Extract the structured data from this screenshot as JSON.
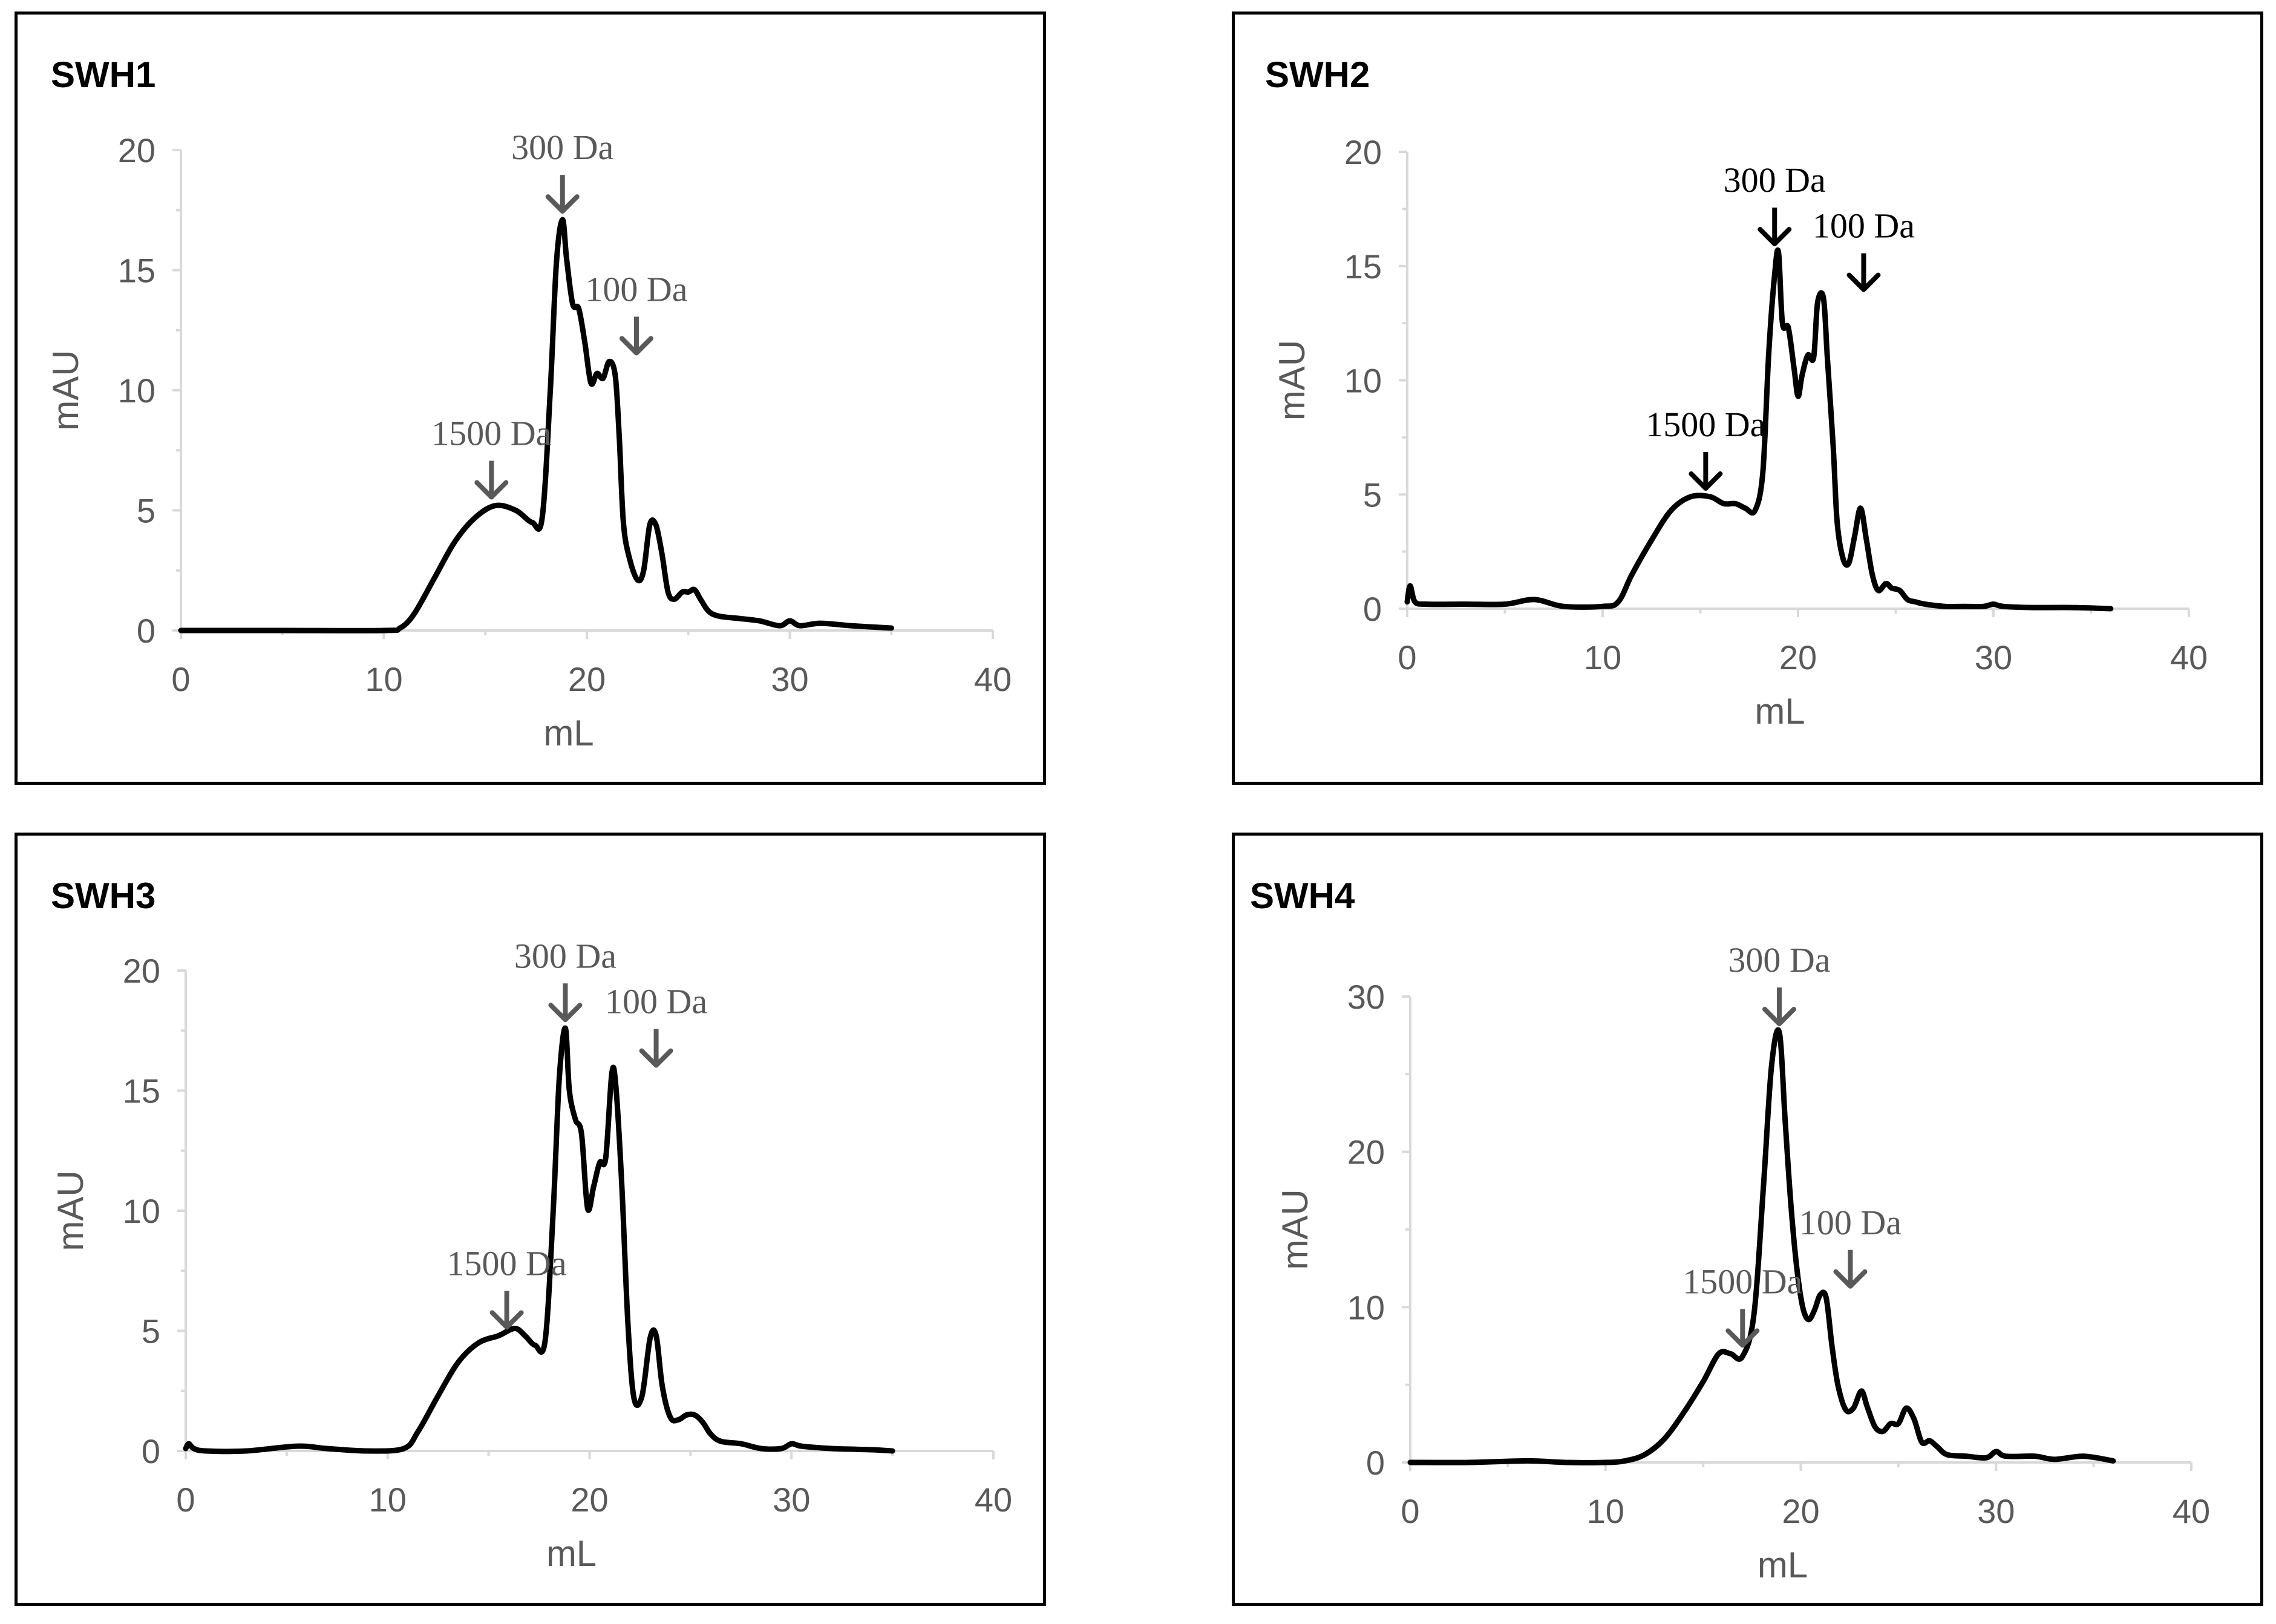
{
  "chart_data": [
    {
      "type": "line",
      "title": "SWH1",
      "xlabel": "mL",
      "ylabel": "mAU",
      "xlim": [
        0,
        40
      ],
      "ylim": [
        0,
        20
      ],
      "xticks": [
        0,
        10,
        20,
        30,
        40
      ],
      "yticks": [
        0,
        5,
        10,
        15,
        20
      ],
      "color": "#000000",
      "annotation_color": "#595959",
      "series": [
        {
          "name": "SWH1",
          "x": [
            0,
            5,
            10,
            10.8,
            11.5,
            12.5,
            13.5,
            14.5,
            15.5,
            16.5,
            17.3,
            17.8,
            18.2,
            18.5,
            18.8,
            19.0,
            19.3,
            19.6,
            19.9,
            20.2,
            20.5,
            20.8,
            21.1,
            21.4,
            21.6,
            21.8,
            22.1,
            22.5,
            22.8,
            23.1,
            23.4,
            23.7,
            24.0,
            24.3,
            24.7,
            25.0,
            25.3,
            25.6,
            26.0,
            26.5,
            27.5,
            28.5,
            29.5,
            30.0,
            30.5,
            31.5,
            33,
            35
          ],
          "y": [
            0,
            0,
            0,
            0.1,
            0.7,
            2.2,
            3.7,
            4.7,
            5.2,
            5.0,
            4.5,
            4.7,
            10,
            15.3,
            17.1,
            15.5,
            13.6,
            13.4,
            12,
            10.3,
            10.7,
            10.5,
            11.2,
            10.6,
            8,
            4.5,
            3,
            2.1,
            2.5,
            4.4,
            4.4,
            3.2,
            1.6,
            1.3,
            1.6,
            1.6,
            1.7,
            1.3,
            0.8,
            0.6,
            0.5,
            0.4,
            0.2,
            0.4,
            0.2,
            0.3,
            0.2,
            0.1
          ]
        }
      ],
      "annotations": [
        {
          "label": "1500 Da",
          "x": 15.3,
          "y": 5.2
        },
        {
          "label": "300 Da",
          "x": 18.8,
          "y": 17.1
        },
        {
          "label": "100 Da",
          "x": 21.4,
          "y": 11.2
        }
      ]
    },
    {
      "type": "line",
      "title": "SWH2",
      "xlabel": "mL",
      "ylabel": "mAU",
      "xlim": [
        0,
        40
      ],
      "ylim": [
        0,
        20
      ],
      "xticks": [
        0,
        10,
        20,
        30,
        40
      ],
      "yticks": [
        0,
        5,
        10,
        15,
        20
      ],
      "color": "#000000",
      "annotation_color": "#000000",
      "series": [
        {
          "name": "SWH2",
          "x": [
            0,
            0.15,
            0.4,
            1,
            3,
            5,
            6.5,
            8,
            10,
            10.8,
            11.5,
            12.5,
            13.5,
            14.5,
            15.5,
            16.2,
            16.8,
            17.3,
            17.8,
            18.2,
            18.5,
            18.8,
            19.0,
            19.2,
            19.5,
            19.8,
            20.0,
            20.2,
            20.5,
            20.8,
            21.0,
            21.3,
            21.5,
            21.8,
            22.0,
            22.3,
            22.6,
            22.9,
            23.2,
            23.5,
            23.8,
            24.1,
            24.5,
            24.8,
            25.2,
            25.6,
            26.0,
            26.5,
            27.5,
            28.5,
            29.5,
            30.0,
            30.5,
            32,
            34,
            36
          ],
          "y": [
            0.3,
            1.0,
            0.3,
            0.2,
            0.2,
            0.2,
            0.4,
            0.1,
            0.1,
            0.3,
            1.5,
            3.0,
            4.3,
            4.9,
            4.9,
            4.6,
            4.6,
            4.4,
            4.3,
            6.0,
            11.2,
            14.6,
            15.6,
            12.5,
            12.3,
            10.5,
            9.3,
            10.2,
            11.1,
            11.0,
            13.4,
            13.6,
            11,
            7.1,
            3.8,
            2.2,
            2.0,
            3.2,
            4.4,
            3.0,
            1.5,
            0.8,
            1.1,
            0.9,
            0.8,
            0.4,
            0.3,
            0.2,
            0.1,
            0.1,
            0.1,
            0.2,
            0.1,
            0.05,
            0.05,
            0.0
          ]
        }
      ],
      "annotations": [
        {
          "label": "1500 Da",
          "x": 14.5,
          "y": 4.9
        },
        {
          "label": "300 Da",
          "x": 18.8,
          "y": 15.6
        },
        {
          "label": "100 Da",
          "x": 21.5,
          "y": 13.6
        }
      ]
    },
    {
      "type": "line",
      "title": "SWH3",
      "xlabel": "mL",
      "ylabel": "mAU",
      "xlim": [
        0,
        40
      ],
      "ylim": [
        0,
        20
      ],
      "xticks": [
        0,
        10,
        20,
        30,
        40
      ],
      "yticks": [
        0,
        5,
        10,
        15,
        20
      ],
      "color": "#000000",
      "annotation_color": "#595959",
      "series": [
        {
          "name": "SWH3",
          "x": [
            0,
            0.15,
            0.4,
            1,
            3,
            5.5,
            7,
            9,
            10.8,
            11.5,
            12.5,
            13.5,
            14.5,
            15.5,
            16.3,
            16.8,
            17.3,
            17.8,
            18.2,
            18.5,
            18.8,
            19.0,
            19.3,
            19.6,
            19.9,
            20.2,
            20.5,
            20.8,
            21.1,
            21.3,
            21.6,
            21.9,
            22.2,
            22.6,
            23.0,
            23.3,
            23.6,
            24.0,
            24.4,
            24.8,
            25.2,
            25.6,
            26.0,
            26.5,
            27.5,
            28.5,
            29.5,
            30.0,
            30.5,
            32,
            34,
            35
          ],
          "y": [
            0.1,
            0.3,
            0.1,
            0,
            0,
            0.2,
            0.1,
            0,
            0.1,
            0.8,
            2.3,
            3.7,
            4.5,
            4.8,
            5.1,
            4.8,
            4.4,
            4.6,
            10,
            15.5,
            17.6,
            15,
            13.8,
            13.2,
            10.1,
            11.0,
            12.0,
            12.2,
            15.7,
            15.2,
            11.0,
            5.3,
            2.2,
            2.3,
            4.7,
            4.8,
            2.7,
            1.4,
            1.3,
            1.5,
            1.5,
            1.2,
            0.7,
            0.4,
            0.3,
            0.1,
            0.1,
            0.3,
            0.2,
            0.1,
            0.05,
            0.0
          ]
        }
      ],
      "annotations": [
        {
          "label": "1500 Da",
          "x": 15.0,
          "y": 4.8
        },
        {
          "label": "300 Da",
          "x": 18.8,
          "y": 17.6
        },
        {
          "label": "100 Da",
          "x": 21.8,
          "y": 15.7
        }
      ]
    },
    {
      "type": "line",
      "title": "SWH4",
      "xlabel": "mL",
      "ylabel": "mAU",
      "xlim": [
        0,
        40
      ],
      "ylim": [
        0,
        30
      ],
      "xticks": [
        0,
        10,
        20,
        30,
        40
      ],
      "yticks": [
        0,
        10,
        20,
        30
      ],
      "color": "#000000",
      "annotation_color": "#595959",
      "series": [
        {
          "name": "SWH4",
          "x": [
            0,
            3,
            6,
            8,
            10,
            11,
            12,
            13,
            14,
            15,
            15.8,
            16.4,
            17.0,
            17.6,
            18.1,
            18.5,
            18.9,
            19.2,
            19.5,
            19.8,
            20.1,
            20.4,
            20.7,
            21.0,
            21.3,
            21.6,
            21.9,
            22.3,
            22.7,
            23.1,
            23.4,
            23.8,
            24.2,
            24.6,
            25.0,
            25.4,
            25.8,
            26.2,
            26.6,
            27.0,
            27.5,
            28.5,
            29.5,
            30.0,
            30.5,
            32,
            33,
            34.5,
            36
          ],
          "y": [
            0,
            0,
            0.1,
            0,
            0,
            0.1,
            0.5,
            1.5,
            3.2,
            5.2,
            7.0,
            7.0,
            6.8,
            9.5,
            18,
            25.5,
            27.7,
            22,
            16.5,
            12.5,
            10.0,
            9.2,
            9.8,
            10.8,
            10.6,
            7.5,
            5.0,
            3.4,
            3.5,
            4.6,
            3.6,
            2.3,
            2.0,
            2.5,
            2.5,
            3.5,
            2.8,
            1.3,
            1.4,
            1.0,
            0.5,
            0.4,
            0.3,
            0.7,
            0.4,
            0.4,
            0.2,
            0.4,
            0.1
          ]
        }
      ],
      "annotations": [
        {
          "label": "1500 Da",
          "x": 16.4,
          "y": 7.0
        },
        {
          "label": "300 Da",
          "x": 18.9,
          "y": 27.7
        },
        {
          "label": "100 Da",
          "x": 21.3,
          "y": 10.8
        }
      ]
    }
  ]
}
